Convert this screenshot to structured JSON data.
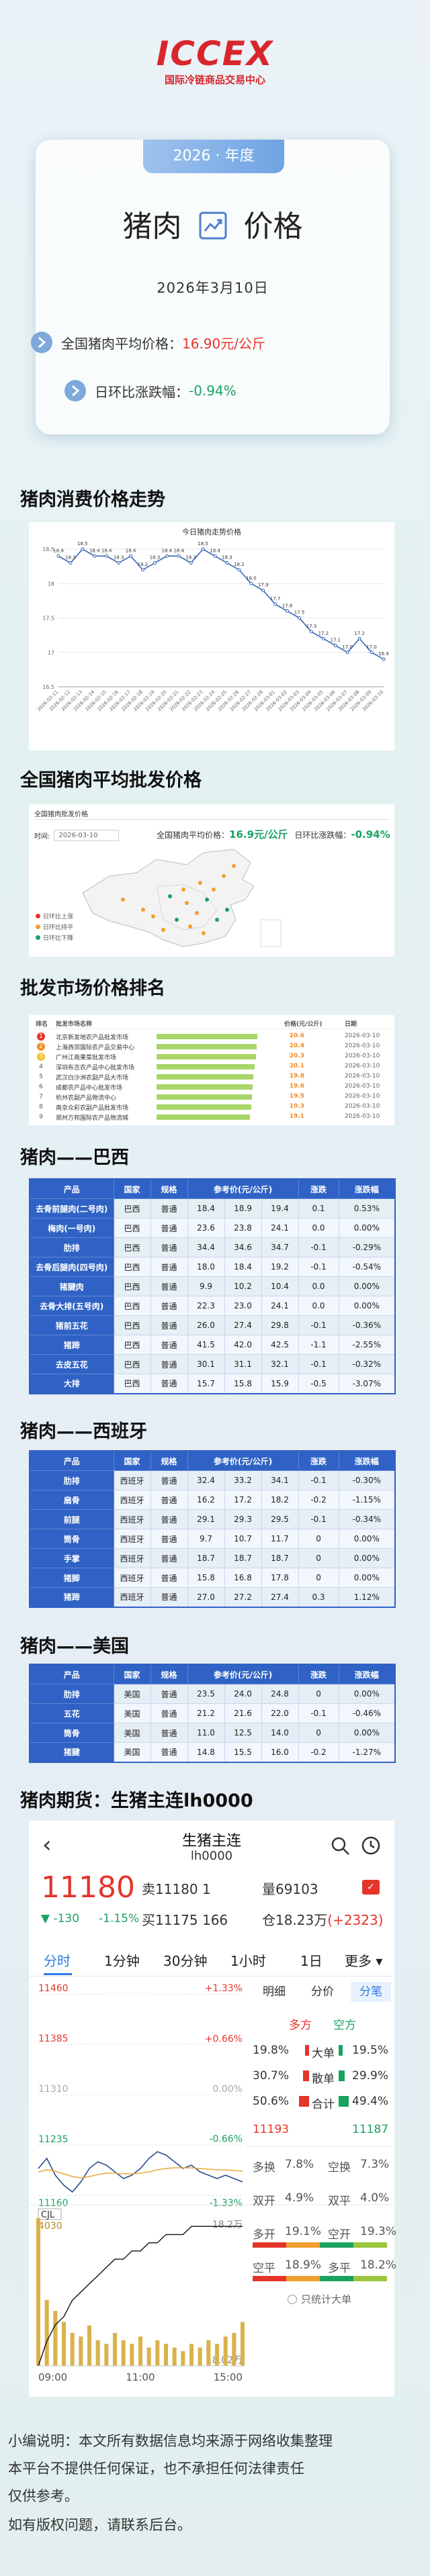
{
  "logo": {
    "brand": "ICCEX",
    "subtitle": "国际冷链商品交易中心"
  },
  "card": {
    "badge": "2026 · 年度",
    "title_left": "猪肉",
    "title_right": "价格",
    "date": "2026年3月10日",
    "avg_label": "全国猪肉平均价格：",
    "avg_value": "16.90元/公斤",
    "change_label": "日环比涨跌幅：",
    "change_value": "-0.94%"
  },
  "headings": [
    "猪肉消费价格走势",
    "全国猪肉平均批发价格",
    "批发市场价格排名",
    "猪肉——巴西",
    "猪肉——西班牙",
    "猪肉——美国",
    "猪肉期货：生猪主连lh0000"
  ],
  "chart_data": [
    {
      "type": "line",
      "title": "今日猪肉走势价格",
      "categories": [
        "2026-02-11",
        "2026-02-12",
        "2026-02-13",
        "2026-02-14",
        "2026-02-15",
        "2026-02-16",
        "2026-02-17",
        "2026-02-18",
        "2026-02-19",
        "2026-02-20",
        "2026-02-21",
        "2026-02-22",
        "2026-02-23",
        "2026-02-24",
        "2026-02-25",
        "2026-02-26",
        "2026-02-27",
        "2026-02-28",
        "2026-03-01",
        "2026-03-02",
        "2026-03-03",
        "2026-03-04",
        "2026-03-05",
        "2026-03-06",
        "2026-03-07",
        "2026-03-08",
        "2026-03-09",
        "2026-03-10"
      ],
      "values": [
        18.4,
        18.3,
        18.5,
        18.4,
        18.4,
        18.3,
        18.4,
        18.2,
        18.3,
        18.4,
        18.4,
        18.3,
        18.5,
        18.4,
        18.3,
        18.2,
        18.0,
        17.9,
        17.7,
        17.6,
        17.5,
        17.3,
        17.2,
        17.1,
        17.0,
        17.2,
        17.0,
        16.9
      ],
      "value_labels": [
        "18.4",
        "18.3",
        "18.5",
        "18.4",
        "18.4",
        "18.3",
        "18.4",
        "18.2",
        "18.3",
        "18.4",
        "18.4",
        "18.3",
        "18.5",
        "18.4",
        "18.3",
        "18.2",
        "18.0",
        "17.9",
        "17.7",
        "17.6",
        "17.5",
        "17.3",
        "17.2",
        "17.1",
        "17.0",
        "17.2",
        "17.0",
        "16.9"
      ],
      "color": "#2f5fb3",
      "ylim": [
        16.5,
        18.5
      ],
      "yticks": [
        16.5,
        17,
        17.5,
        18,
        18.5
      ],
      "grid": true
    },
    {
      "type": "line",
      "series": [
        {
          "color": "#2a4d8f",
          "values": [
            11200,
            11215,
            11190,
            11175,
            11165,
            11180,
            11200,
            11210,
            11205,
            11195,
            11185,
            11190,
            11200,
            11215,
            11225,
            11220,
            11210,
            11200,
            11205,
            11195,
            11190,
            11185,
            11190,
            11185,
            11180
          ]
        },
        {
          "color": "#e8a93a",
          "values": [
            11195,
            11198,
            11196,
            11192,
            11188,
            11186,
            11188,
            11191,
            11193,
            11193,
            11192,
            11192,
            11193,
            11195,
            11198,
            11200,
            11201,
            11201,
            11201,
            11200,
            11199,
            11198,
            11198,
            11197,
            11196
          ]
        }
      ],
      "ylim": [
        11160,
        11460
      ],
      "yticks": [
        11460,
        11385,
        11310,
        11235,
        11160
      ],
      "y2lim": [
        -1.33,
        1.33
      ],
      "y2ticks": [
        {
          "value": 1.33,
          "label": "+1.33%"
        },
        {
          "value": 0.66,
          "label": "+0.66%"
        },
        {
          "value": 0,
          "label": "0.00%"
        },
        {
          "value": -0.66,
          "label": "-0.66%"
        },
        {
          "value": -1.33,
          "label": "-1.33%"
        }
      ],
      "grid": true
    },
    {
      "type": "bar",
      "title": "CJL",
      "categories": [
        "09:00",
        null,
        null,
        null,
        null,
        null,
        null,
        null,
        null,
        null,
        null,
        null,
        "11:00",
        null,
        null,
        null,
        null,
        null,
        null,
        null,
        null,
        null,
        null,
        null,
        "15:00"
      ],
      "values": [
        4030,
        1800,
        1500,
        1200,
        900,
        800,
        1100,
        700,
        600,
        900,
        700,
        600,
        800,
        500,
        700,
        600,
        500,
        400,
        600,
        500,
        700,
        600,
        800,
        900,
        1200
      ],
      "color": "#d9b24a",
      "ylim": [
        0,
        4030
      ],
      "yticks": [
        4030
      ],
      "series": [
        {
          "axis": "y2",
          "color": "#111111",
          "values": [
            18.02,
            18.05,
            18.07,
            18.08,
            18.1,
            18.11,
            18.12,
            18.13,
            18.14,
            18.15,
            18.15,
            18.16,
            18.16,
            18.17,
            18.17,
            18.18,
            18.18,
            18.18,
            18.19,
            18.19,
            18.19,
            18.19,
            18.19,
            18.19,
            18.19
          ]
        }
      ],
      "y2lim": [
        18.02,
        18.2
      ],
      "y2ticks": [
        {
          "value": 18.2,
          "label": "18.2万"
        },
        {
          "value": 18.02,
          "label": "18.02万"
        }
      ]
    }
  ],
  "map": {
    "title": "全国猪肉批发价格",
    "time_label": "时间:",
    "date": "2026-03-10",
    "avg_label": "全国猪肉平均价格：",
    "avg_value": "16.9元/公斤",
    "change_label": "日环比涨跌幅：",
    "change_value": "-0.94%",
    "legend": [
      "日环比上涨",
      "日环比持平",
      "日环比下降"
    ]
  },
  "ranking": {
    "columns": [
      "排名",
      "批发市场名称",
      "价格(元/公斤)",
      "日期"
    ],
    "rows": [
      [
        1,
        "北京新发地农产品批发市场",
        20.6,
        "2026-03-10"
      ],
      [
        2,
        "上海西郊国际农产品交易中心",
        20.4,
        "2026-03-10"
      ],
      [
        3,
        "广州江南果菜批发市场",
        20.3,
        "2026-03-10"
      ],
      [
        4,
        "深圳布吉农产品中心批发市场",
        20.1,
        "2026-03-10"
      ],
      [
        5,
        "武汉白沙洲农副产品大市场",
        19.8,
        "2026-03-10"
      ],
      [
        6,
        "成都农产品中心批发市场",
        19.6,
        "2026-03-10"
      ],
      [
        7,
        "杭州农副产品物流中心",
        19.5,
        "2026-03-10"
      ],
      [
        8,
        "南京众彩农副产品批发市场",
        19.3,
        "2026-03-10"
      ],
      [
        9,
        "郑州万邦国际农产品物流城",
        19.1,
        "2026-03-10"
      ]
    ]
  },
  "tables": [
    {
      "columns": [
        "产品",
        "国家",
        "规格",
        "参考价(元/公斤)",
        "涨跌",
        "涨跌幅"
      ],
      "rows": [
        [
          "去骨前腿肉(二号肉)",
          "巴西",
          "普通",
          "18.4",
          "18.9",
          "19.4",
          "0.1",
          "0.53%"
        ],
        [
          "梅肉(一号肉)",
          "巴西",
          "普通",
          "23.6",
          "23.8",
          "24.1",
          "0.0",
          "0.00%"
        ],
        [
          "肋排",
          "巴西",
          "普通",
          "34.4",
          "34.6",
          "34.7",
          "-0.1",
          "-0.29%"
        ],
        [
          "去骨后腿肉(四号肉)",
          "巴西",
          "普通",
          "18.0",
          "18.4",
          "19.2",
          "-0.1",
          "-0.54%"
        ],
        [
          "猪腱肉",
          "巴西",
          "普通",
          "9.9",
          "10.2",
          "10.4",
          "0.0",
          "0.00%"
        ],
        [
          "去骨大排(五号肉)",
          "巴西",
          "普通",
          "22.3",
          "23.0",
          "24.1",
          "0.0",
          "0.00%"
        ],
        [
          "猪前五花",
          "巴西",
          "普通",
          "26.0",
          "27.4",
          "29.8",
          "-0.1",
          "-0.36%"
        ],
        [
          "猪蹄",
          "巴西",
          "普通",
          "41.5",
          "42.0",
          "42.5",
          "-1.1",
          "-2.55%"
        ],
        [
          "去皮五花",
          "巴西",
          "普通",
          "30.1",
          "31.1",
          "32.1",
          "-0.1",
          "-0.32%"
        ],
        [
          "大排",
          "巴西",
          "普通",
          "15.7",
          "15.8",
          "15.9",
          "-0.5",
          "-3.07%"
        ]
      ]
    },
    {
      "columns": [
        "产品",
        "国家",
        "规格",
        "参考价(元/公斤)",
        "涨跌",
        "涨跌幅"
      ],
      "rows": [
        [
          "肋排",
          "西班牙",
          "普通",
          "32.4",
          "33.2",
          "34.1",
          "-0.1",
          "-0.30%"
        ],
        [
          "扇骨",
          "西班牙",
          "普通",
          "16.2",
          "17.2",
          "18.2",
          "-0.2",
          "-1.15%"
        ],
        [
          "前腿",
          "西班牙",
          "普通",
          "29.1",
          "29.3",
          "29.5",
          "-0.1",
          "-0.34%"
        ],
        [
          "筒骨",
          "西班牙",
          "普通",
          "9.7",
          "10.7",
          "11.7",
          "0",
          "0.00%"
        ],
        [
          "手掌",
          "西班牙",
          "普通",
          "18.7",
          "18.7",
          "18.7",
          "0",
          "0.00%"
        ],
        [
          "猪脚",
          "西班牙",
          "普通",
          "15.8",
          "16.8",
          "17.8",
          "0",
          "0.00%"
        ],
        [
          "猪蹄",
          "西班牙",
          "普通",
          "27.0",
          "27.2",
          "27.4",
          "0.3",
          "1.12%"
        ]
      ]
    },
    {
      "columns": [
        "产品",
        "国家",
        "规格",
        "参考价(元/公斤)",
        "涨跌",
        "涨跌幅"
      ],
      "rows": [
        [
          "肋排",
          "美国",
          "普通",
          "23.5",
          "24.0",
          "24.8",
          "0",
          "0.00%"
        ],
        [
          "五花",
          "美国",
          "普通",
          "21.2",
          "21.6",
          "22.0",
          "-0.1",
          "-0.46%"
        ],
        [
          "筒骨",
          "美国",
          "普通",
          "11.0",
          "12.5",
          "14.0",
          "0",
          "0.00%"
        ],
        [
          "猪腱",
          "美国",
          "普通",
          "14.8",
          "15.5",
          "16.0",
          "-0.2",
          "-1.27%"
        ]
      ]
    }
  ],
  "futures": {
    "name": "生猪主连",
    "code": "lh0000",
    "price": "11180",
    "sell": "卖11180",
    "sell_qty": "1",
    "volume": "量69103",
    "change": "▼ -130",
    "change_pct": "-1.15%",
    "buy": "买11175",
    "buy_qty": "166",
    "open_interest": "仓18.23万",
    "oi_change": "(+2323)",
    "tabs": [
      "分时",
      "1分钟",
      "30分钟",
      "1小时",
      "1日",
      "更多 ▾"
    ],
    "panel_tabs": [
      "明细",
      "分价",
      "分笔"
    ],
    "sides": [
      "多方",
      "空方"
    ],
    "flow": [
      {
        "long": 19.8,
        "long_label": "19.8%",
        "label": "大单",
        "short": 19.5,
        "short_label": "19.5%"
      },
      {
        "long": 30.7,
        "long_label": "30.7%",
        "label": "散单",
        "short": 29.9,
        "short_label": "29.9%"
      },
      {
        "long": 50.6,
        "long_label": "50.6%",
        "label": "合计",
        "short": 49.4,
        "short_label": "49.4%"
      }
    ],
    "totals": [
      "11193",
      "11187"
    ],
    "stats": [
      [
        "多换",
        "7.8%",
        "空换",
        "7.3%"
      ],
      [
        "双开",
        "4.9%",
        "双平",
        "4.0%"
      ],
      [
        "多开",
        "19.1%",
        "空开",
        "19.3%"
      ],
      [
        "空平",
        "18.9%",
        "多平",
        "18.2%"
      ]
    ],
    "only_large": "只统计大单"
  },
  "footer": [
    "小编说明：本文所有数据信息均来源于网络收集整理",
    "本平台不提供任何保证，也不承担任何法律责任",
    "仅供参考。",
    "如有版权问题，请联系后台。"
  ]
}
